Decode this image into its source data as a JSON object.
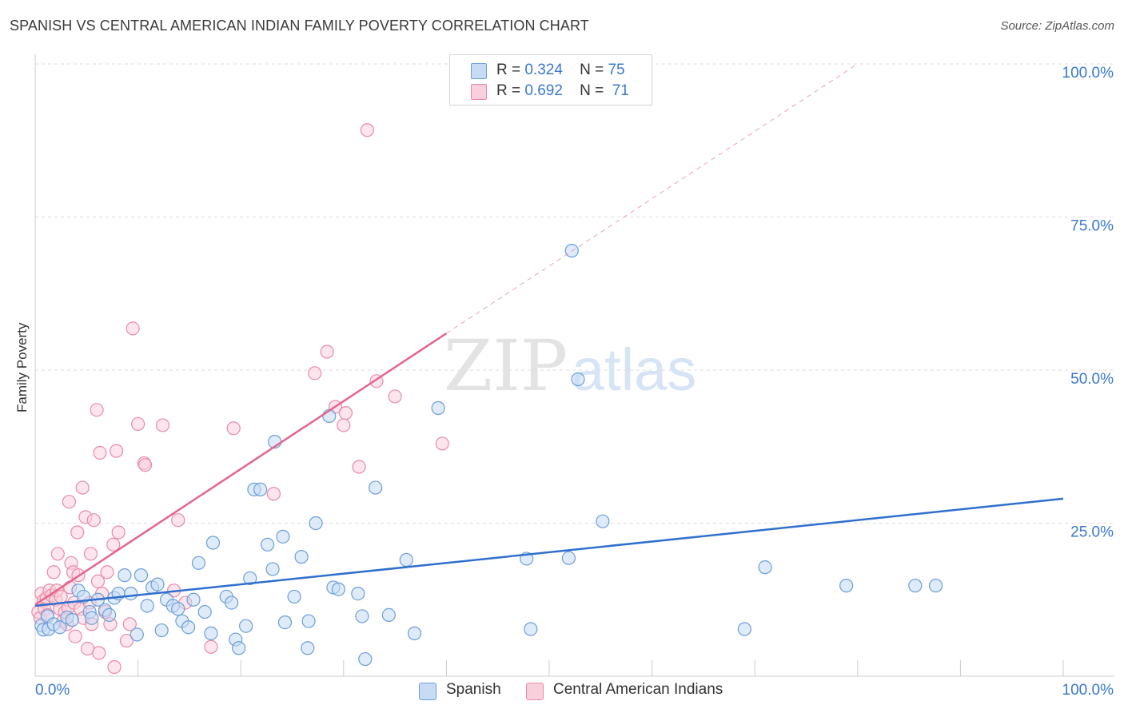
{
  "title": "SPANISH VS CENTRAL AMERICAN INDIAN FAMILY POVERTY CORRELATION CHART",
  "source": "Source: ZipAtlas.com",
  "watermark": {
    "zip": "ZIP",
    "atlas": "atlas"
  },
  "legend": {
    "r_label": "R =",
    "n_label": "N =",
    "rows": [
      {
        "name": "Spanish",
        "r": "0.324",
        "n": "75"
      },
      {
        "name": "Central American Indians",
        "r": "0.692",
        "n": "71"
      }
    ]
  },
  "colors": {
    "spanish_fill": "#c7dbf5",
    "spanish_stroke": "#6a9fd8",
    "spanish_line": "#2f6fce",
    "cai_fill": "#f9cfdc",
    "cai_stroke": "#e98aa8",
    "cai_line": "#e4648f",
    "axis_text": "#3a78d1",
    "grid": "#dddddd"
  },
  "chart_data": {
    "type": "scatter",
    "title": "SPANISH VS CENTRAL AMERICAN INDIAN FAMILY POVERTY CORRELATION CHART",
    "xlabel": "",
    "ylabel": "Family Poverty",
    "xlim": [
      0,
      100
    ],
    "ylim": [
      0,
      100
    ],
    "x_tick_labels": {
      "min": "0.0%",
      "max": "100.0%"
    },
    "y_ticks": [
      {
        "value": 25,
        "label": "25.0%"
      },
      {
        "value": 50,
        "label": "50.0%"
      },
      {
        "value": 75,
        "label": "75.0%"
      },
      {
        "value": 100,
        "label": "100.0%"
      }
    ],
    "series": [
      {
        "name": "Spanish",
        "r": 0.324,
        "n": 75,
        "trend": {
          "x0": 0,
          "y0": 11.5,
          "x1": 100,
          "y1": 29.0,
          "dashed_to": null
        },
        "points": [
          [
            0.6,
            8.3
          ],
          [
            0.8,
            7.6
          ],
          [
            1.2,
            9.8
          ],
          [
            1.3,
            7.7
          ],
          [
            1.8,
            8.5
          ],
          [
            2.4,
            8.0
          ],
          [
            3.1,
            9.6
          ],
          [
            3.6,
            9.2
          ],
          [
            4.2,
            14.0
          ],
          [
            4.7,
            13.0
          ],
          [
            5.3,
            10.5
          ],
          [
            5.5,
            9.5
          ],
          [
            6.1,
            12.5
          ],
          [
            6.8,
            10.8
          ],
          [
            7.2,
            10.0
          ],
          [
            7.7,
            12.8
          ],
          [
            8.1,
            13.5
          ],
          [
            8.7,
            16.5
          ],
          [
            9.3,
            13.5
          ],
          [
            9.9,
            6.8
          ],
          [
            10.3,
            16.5
          ],
          [
            10.9,
            11.5
          ],
          [
            11.4,
            14.5
          ],
          [
            11.9,
            15.0
          ],
          [
            12.3,
            7.5
          ],
          [
            12.8,
            12.5
          ],
          [
            13.4,
            11.5
          ],
          [
            13.9,
            11.0
          ],
          [
            14.3,
            9.0
          ],
          [
            14.9,
            8.0
          ],
          [
            15.4,
            12.5
          ],
          [
            15.9,
            18.5
          ],
          [
            16.5,
            10.5
          ],
          [
            17.1,
            7.0
          ],
          [
            17.3,
            21.8
          ],
          [
            18.6,
            13.0
          ],
          [
            19.1,
            12.0
          ],
          [
            19.5,
            6.0
          ],
          [
            19.8,
            4.6
          ],
          [
            20.5,
            8.2
          ],
          [
            20.9,
            16.0
          ],
          [
            21.3,
            30.5
          ],
          [
            21.9,
            30.5
          ],
          [
            22.6,
            21.5
          ],
          [
            23.1,
            17.5
          ],
          [
            23.3,
            38.3
          ],
          [
            24.1,
            22.8
          ],
          [
            24.3,
            8.8
          ],
          [
            25.2,
            13.0
          ],
          [
            25.9,
            19.5
          ],
          [
            26.5,
            4.6
          ],
          [
            26.6,
            9.0
          ],
          [
            27.3,
            25.0
          ],
          [
            28.6,
            42.5
          ],
          [
            29.0,
            14.5
          ],
          [
            29.5,
            14.2
          ],
          [
            31.4,
            13.5
          ],
          [
            31.8,
            9.8
          ],
          [
            32.1,
            2.8
          ],
          [
            33.1,
            30.8
          ],
          [
            34.4,
            10.0
          ],
          [
            36.1,
            19.0
          ],
          [
            36.9,
            7.0
          ],
          [
            39.2,
            43.8
          ],
          [
            47.8,
            19.2
          ],
          [
            48.2,
            7.7
          ],
          [
            51.9,
            19.3
          ],
          [
            52.2,
            69.5
          ],
          [
            52.8,
            48.5
          ],
          [
            55.2,
            25.3
          ],
          [
            69.0,
            7.7
          ],
          [
            71.0,
            17.8
          ],
          [
            78.9,
            14.8
          ],
          [
            85.6,
            14.8
          ],
          [
            87.6,
            14.8
          ]
        ]
      },
      {
        "name": "Central American Indians",
        "r": 0.692,
        "n": 71,
        "trend": {
          "x0": 0,
          "y0": 11.7,
          "x1": 40,
          "y1": 56.0,
          "dashed_to": {
            "x": 80,
            "y": 100
          }
        },
        "points": [
          [
            0.3,
            10.5
          ],
          [
            0.5,
            9.5
          ],
          [
            0.6,
            13.5
          ],
          [
            0.8,
            12.3
          ],
          [
            0.9,
            11.0
          ],
          [
            1.1,
            12.8
          ],
          [
            1.2,
            10.0
          ],
          [
            1.4,
            14.0
          ],
          [
            1.6,
            13.2
          ],
          [
            1.8,
            17.0
          ],
          [
            2.0,
            12.5
          ],
          [
            2.1,
            14.0
          ],
          [
            2.2,
            20.0
          ],
          [
            2.4,
            11.0
          ],
          [
            2.5,
            13.0
          ],
          [
            2.7,
            9.0
          ],
          [
            2.9,
            10.5
          ],
          [
            3.1,
            8.5
          ],
          [
            3.2,
            11.2
          ],
          [
            3.3,
            28.5
          ],
          [
            3.4,
            14.5
          ],
          [
            3.5,
            18.5
          ],
          [
            3.7,
            17.0
          ],
          [
            3.8,
            12.0
          ],
          [
            3.9,
            6.5
          ],
          [
            4.1,
            23.5
          ],
          [
            4.2,
            16.5
          ],
          [
            4.4,
            11.0
          ],
          [
            4.6,
            30.8
          ],
          [
            4.7,
            9.5
          ],
          [
            4.9,
            26.0
          ],
          [
            5.1,
            4.5
          ],
          [
            5.3,
            12.0
          ],
          [
            5.4,
            20.0
          ],
          [
            5.5,
            8.5
          ],
          [
            5.7,
            25.5
          ],
          [
            6.0,
            43.5
          ],
          [
            6.1,
            15.5
          ],
          [
            6.2,
            3.8
          ],
          [
            6.3,
            36.5
          ],
          [
            6.5,
            13.5
          ],
          [
            6.8,
            10.5
          ],
          [
            7.0,
            17.0
          ],
          [
            7.3,
            8.5
          ],
          [
            7.6,
            21.5
          ],
          [
            7.7,
            1.5
          ],
          [
            7.9,
            36.8
          ],
          [
            8.1,
            23.5
          ],
          [
            8.9,
            5.8
          ],
          [
            9.5,
            56.8
          ],
          [
            10.0,
            41.2
          ],
          [
            10.6,
            34.8
          ],
          [
            10.7,
            34.5
          ],
          [
            12.4,
            41.0
          ],
          [
            13.5,
            14.0
          ],
          [
            13.9,
            25.5
          ],
          [
            14.6,
            12.0
          ],
          [
            17.1,
            4.8
          ],
          [
            19.3,
            40.5
          ],
          [
            23.2,
            29.8
          ],
          [
            27.2,
            49.5
          ],
          [
            28.4,
            53.0
          ],
          [
            29.2,
            44.0
          ],
          [
            30.0,
            41.0
          ],
          [
            30.2,
            43.0
          ],
          [
            31.5,
            34.2
          ],
          [
            32.3,
            89.2
          ],
          [
            33.2,
            48.2
          ],
          [
            35.0,
            45.7
          ],
          [
            39.6,
            38.0
          ],
          [
            9.2,
            8.5
          ]
        ]
      }
    ]
  }
}
